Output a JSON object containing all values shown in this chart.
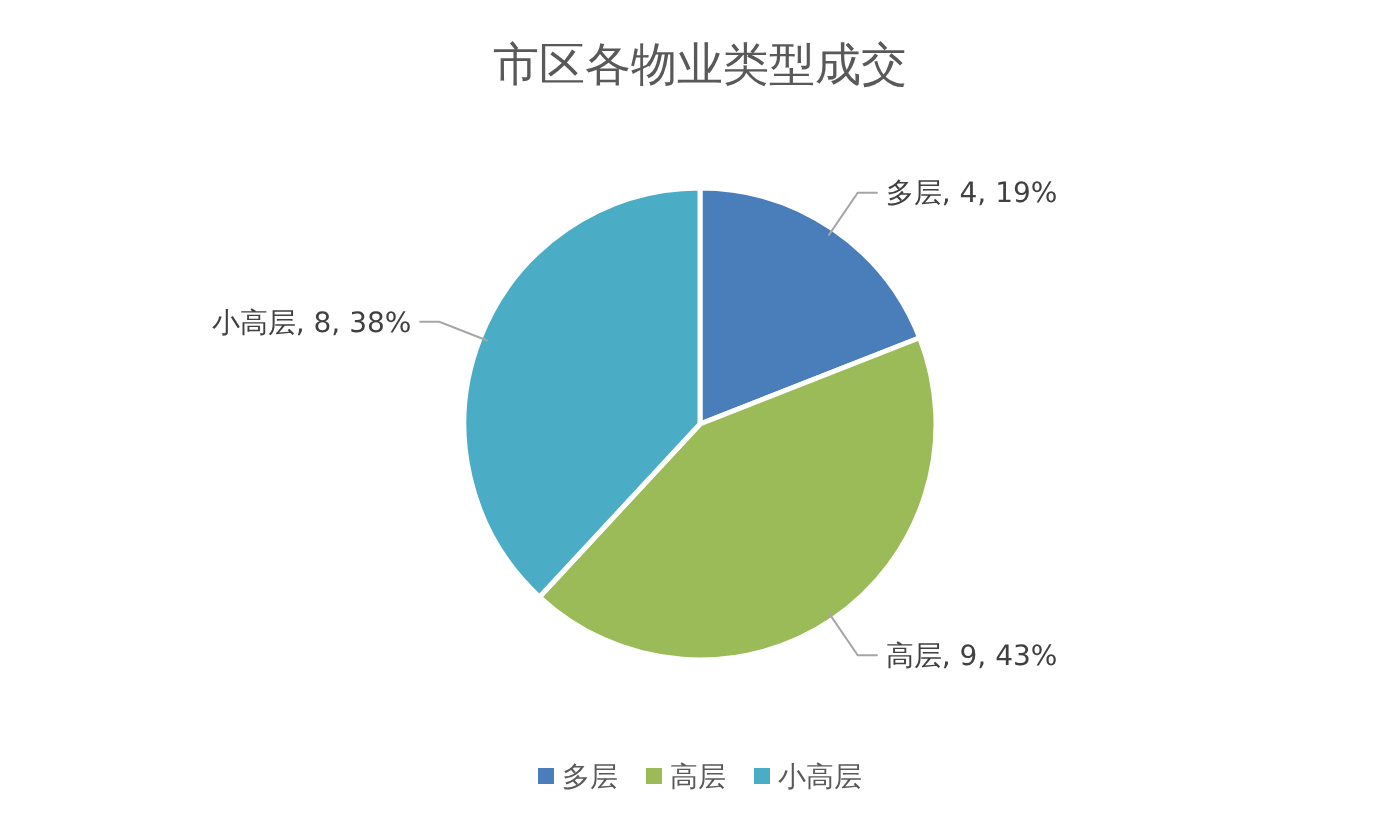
{
  "chart_data": {
    "type": "pie",
    "title": "市区各物业类型成交",
    "categories": [
      "多层",
      "高层",
      "小高层"
    ],
    "values": [
      4,
      9,
      8
    ],
    "colors": [
      "#4a7ebb",
      "#9bbb59",
      "#4bacc6"
    ],
    "value_labels": [
      "多层, 4, 19%",
      "高层, 9, 43%",
      "小高层, 8, 38%"
    ],
    "legend": "bottom"
  }
}
